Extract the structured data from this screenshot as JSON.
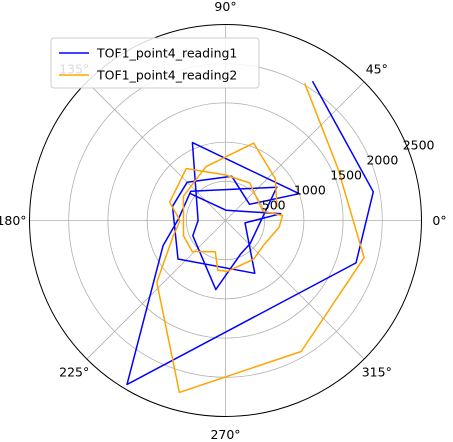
{
  "chart_data": {
    "type": "polar-line",
    "angle_unit": "degrees",
    "radial_max": 2500,
    "angle_ticks": [
      {
        "deg": 0,
        "label": "0°"
      },
      {
        "deg": 45,
        "label": "45°"
      },
      {
        "deg": 90,
        "label": "90°"
      },
      {
        "deg": 135,
        "label": "135°"
      },
      {
        "deg": 180,
        "label": "180°"
      },
      {
        "deg": 225,
        "label": "225°"
      },
      {
        "deg": 270,
        "label": "270°"
      },
      {
        "deg": 315,
        "label": "315°"
      }
    ],
    "radial_ticks": [
      {
        "value": 500,
        "label": "500"
      },
      {
        "value": 1000,
        "label": "1000"
      },
      {
        "value": 1500,
        "label": "1500"
      },
      {
        "value": 2000,
        "label": "2000"
      },
      {
        "value": 2500,
        "label": "2500"
      }
    ],
    "grid": true,
    "legend_position": "top-left",
    "series": [
      {
        "name": "TOF1_point4_reading1",
        "color": "#0000ff",
        "points": [
          {
            "theta": 58,
            "r": 2095
          },
          {
            "theta": 11,
            "r": 1920
          },
          {
            "theta": 342,
            "r": 1750
          },
          {
            "theta": 239,
            "r": 2440
          },
          {
            "theta": 202,
            "r": 860
          },
          {
            "theta": 178,
            "r": 600
          },
          {
            "theta": 140,
            "r": 580
          },
          {
            "theta": 33,
            "r": 780
          },
          {
            "theta": 317,
            "r": 430
          },
          {
            "theta": 294,
            "r": 470
          },
          {
            "theta": 262,
            "r": 890
          },
          {
            "theta": 205,
            "r": 460
          },
          {
            "theta": 180,
            "r": 350
          },
          {
            "theta": 113,
            "r": 1080
          },
          {
            "theta": 20,
            "r": 1000
          },
          {
            "theta": 34,
            "r": 370
          },
          {
            "theta": 82,
            "r": 570
          },
          {
            "theta": 135,
            "r": 690
          },
          {
            "theta": 165,
            "r": 700
          },
          {
            "theta": 219,
            "r": 780
          },
          {
            "theta": 299,
            "r": 770
          },
          {
            "theta": 353,
            "r": 250
          },
          {
            "theta": 7,
            "r": 710
          },
          {
            "theta": 86,
            "r": 130
          },
          {
            "theta": 143,
            "r": 580
          }
        ]
      },
      {
        "name": "TOF1_point4_reading2",
        "color": "#ffa500",
        "points": [
          {
            "theta": 60,
            "r": 2020
          },
          {
            "theta": 25,
            "r": 1580
          },
          {
            "theta": 345,
            "r": 1830
          },
          {
            "theta": 300,
            "r": 1930
          },
          {
            "theta": 255,
            "r": 2270
          },
          {
            "theta": 222,
            "r": 1180
          },
          {
            "theta": 197,
            "r": 700
          },
          {
            "theta": 180,
            "r": 580
          },
          {
            "theta": 162,
            "r": 750
          },
          {
            "theta": 127,
            "r": 830
          },
          {
            "theta": 90,
            "r": 580
          },
          {
            "theta": 57,
            "r": 570
          },
          {
            "theta": 14,
            "r": 490
          },
          {
            "theta": 5,
            "r": 730
          },
          {
            "theta": 353,
            "r": 690
          },
          {
            "theta": 328,
            "r": 580
          },
          {
            "theta": 306,
            "r": 610
          },
          {
            "theta": 272,
            "r": 650
          },
          {
            "theta": 261,
            "r": 640
          },
          {
            "theta": 252,
            "r": 420
          },
          {
            "theta": 223,
            "r": 580
          },
          {
            "theta": 200,
            "r": 570
          },
          {
            "theta": 150,
            "r": 620
          },
          {
            "theta": 110,
            "r": 730
          },
          {
            "theta": 70,
            "r": 1050
          },
          {
            "theta": 40,
            "r": 830
          },
          {
            "theta": 15,
            "r": 680
          }
        ]
      }
    ]
  }
}
